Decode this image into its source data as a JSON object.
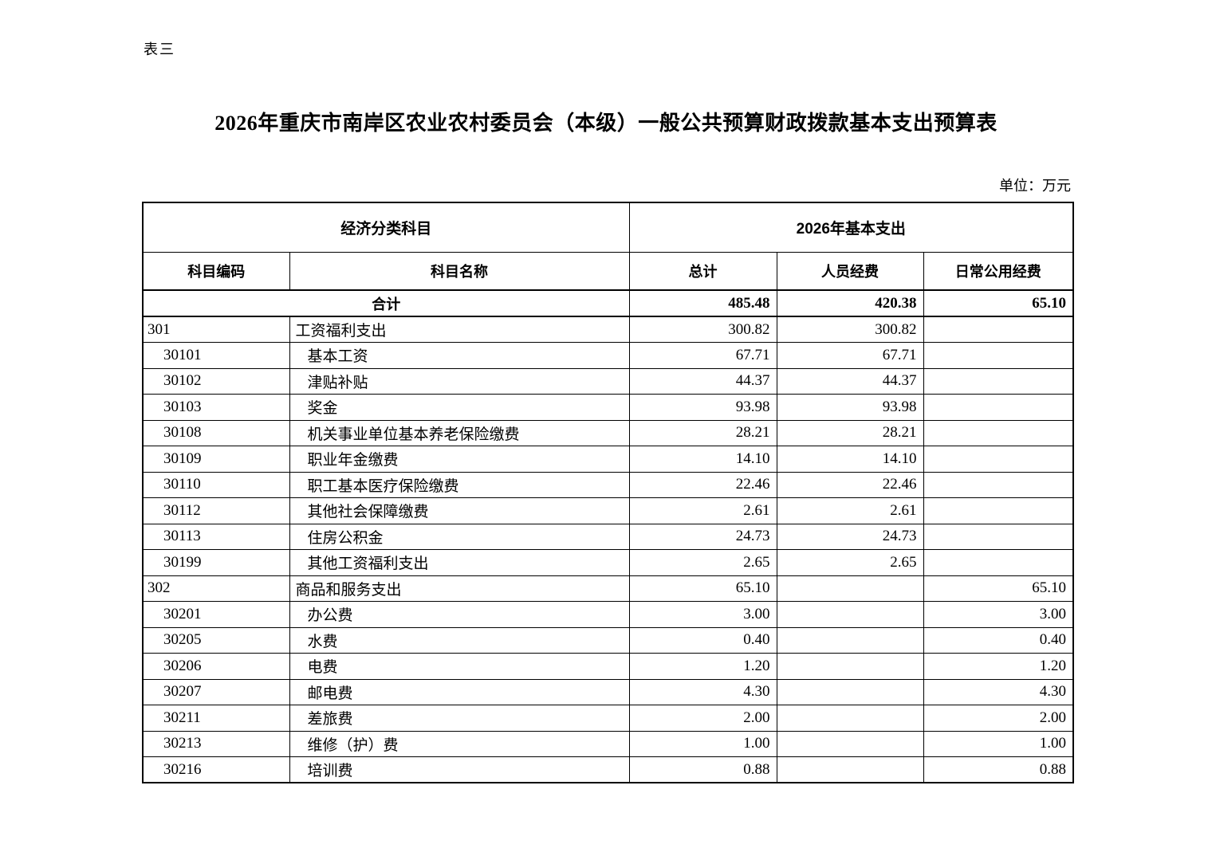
{
  "page": {
    "table_label": "表三",
    "title": "2026年重庆市南岸区农业农村委员会（本级）一般公共预算财政拨款基本支出预算表",
    "unit_label": "单位：万元"
  },
  "table": {
    "header_group": {
      "left": "经济分类科目",
      "right": "2026年基本支出"
    },
    "columns": [
      "科目编码",
      "科目名称",
      "总计",
      "人员经费",
      "日常公用经费"
    ],
    "total_row": {
      "label": "合计",
      "total": "485.48",
      "personnel": "420.38",
      "public": "65.10"
    },
    "rows": [
      {
        "code": "301",
        "name": "工资福利支出",
        "total": "300.82",
        "personnel": "300.82",
        "public": "",
        "level": 1
      },
      {
        "code": "30101",
        "name": "基本工资",
        "total": "67.71",
        "personnel": "67.71",
        "public": "",
        "level": 2
      },
      {
        "code": "30102",
        "name": "津贴补贴",
        "total": "44.37",
        "personnel": "44.37",
        "public": "",
        "level": 2
      },
      {
        "code": "30103",
        "name": "奖金",
        "total": "93.98",
        "personnel": "93.98",
        "public": "",
        "level": 2
      },
      {
        "code": "30108",
        "name": "机关事业单位基本养老保险缴费",
        "total": "28.21",
        "personnel": "28.21",
        "public": "",
        "level": 2
      },
      {
        "code": "30109",
        "name": "职业年金缴费",
        "total": "14.10",
        "personnel": "14.10",
        "public": "",
        "level": 2
      },
      {
        "code": "30110",
        "name": "职工基本医疗保险缴费",
        "total": "22.46",
        "personnel": "22.46",
        "public": "",
        "level": 2
      },
      {
        "code": "30112",
        "name": "其他社会保障缴费",
        "total": "2.61",
        "personnel": "2.61",
        "public": "",
        "level": 2
      },
      {
        "code": "30113",
        "name": "住房公积金",
        "total": "24.73",
        "personnel": "24.73",
        "public": "",
        "level": 2
      },
      {
        "code": "30199",
        "name": "其他工资福利支出",
        "total": "2.65",
        "personnel": "2.65",
        "public": "",
        "level": 2
      },
      {
        "code": "302",
        "name": "商品和服务支出",
        "total": "65.10",
        "personnel": "",
        "public": "65.10",
        "level": 1
      },
      {
        "code": "30201",
        "name": "办公费",
        "total": "3.00",
        "personnel": "",
        "public": "3.00",
        "level": 2
      },
      {
        "code": "30205",
        "name": "水费",
        "total": "0.40",
        "personnel": "",
        "public": "0.40",
        "level": 2
      },
      {
        "code": "30206",
        "name": "电费",
        "total": "1.20",
        "personnel": "",
        "public": "1.20",
        "level": 2
      },
      {
        "code": "30207",
        "name": "邮电费",
        "total": "4.30",
        "personnel": "",
        "public": "4.30",
        "level": 2
      },
      {
        "code": "30211",
        "name": "差旅费",
        "total": "2.00",
        "personnel": "",
        "public": "2.00",
        "level": 2
      },
      {
        "code": "30213",
        "name": "维修（护）费",
        "total": "1.00",
        "personnel": "",
        "public": "1.00",
        "level": 2
      },
      {
        "code": "30216",
        "name": "培训费",
        "total": "0.88",
        "personnel": "",
        "public": "0.88",
        "level": 2
      }
    ]
  }
}
